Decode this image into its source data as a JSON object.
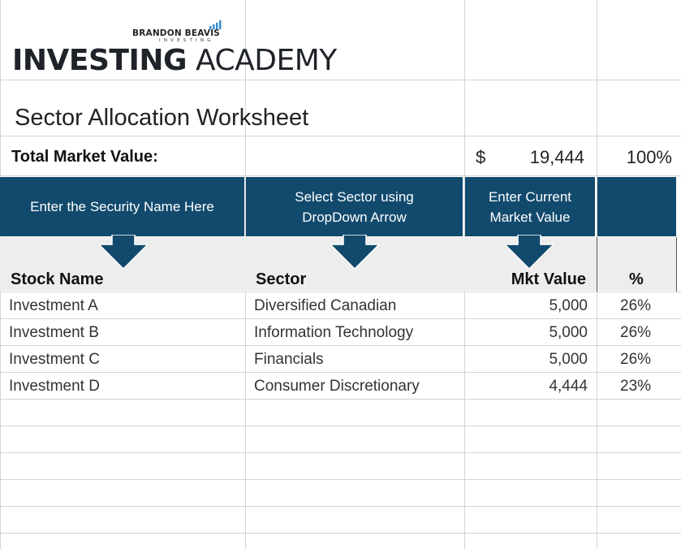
{
  "brand": {
    "name_small": "BRANDON BEAVIS",
    "name_sub": "INVESTING",
    "title_bold": "INVESTING",
    "title_light": "ACADEMY"
  },
  "worksheet_title": "Sector Allocation Worksheet",
  "total": {
    "label": "Total Market Value:",
    "currency_symbol": "$",
    "value": "19,444",
    "percent": "100%"
  },
  "instructions": {
    "security_name": "Enter the Security Name Here",
    "sector_line1": "Select Sector using",
    "sector_line2": "DropDown Arrow",
    "value_line1": "Enter Current",
    "value_line2": "Market Value"
  },
  "table": {
    "headers": {
      "name": "Stock Name",
      "sector": "Sector",
      "value": "Mkt Value",
      "pct": "%"
    },
    "rows": [
      {
        "name": "Investment A",
        "sector": "Diversified Canadian",
        "value": "5,000",
        "pct": "26%"
      },
      {
        "name": "Investment B",
        "sector": "Information Technology",
        "value": "5,000",
        "pct": "26%"
      },
      {
        "name": "Investment C",
        "sector": "Financials",
        "value": "5,000",
        "pct": "26%"
      },
      {
        "name": "Investment D",
        "sector": "Consumer Discretionary",
        "value": "4,444",
        "pct": "23%"
      }
    ]
  },
  "colors": {
    "banner": "#124a6d",
    "header_band": "#ededed",
    "gridline": "#d4d4d4"
  }
}
